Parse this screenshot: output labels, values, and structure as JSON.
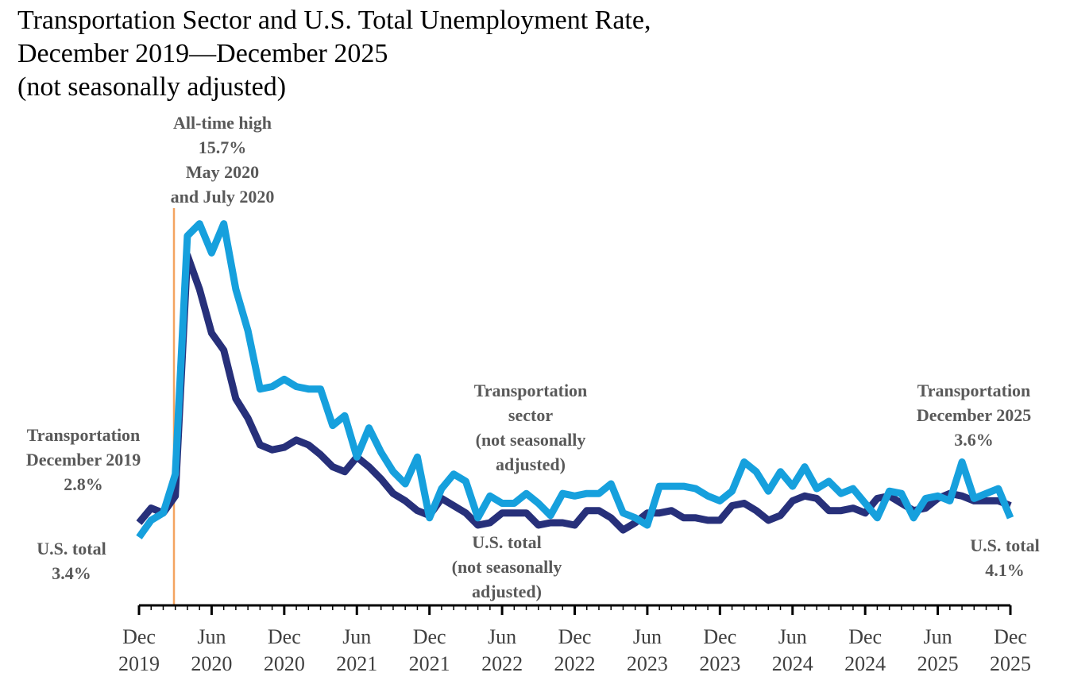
{
  "chart_data": {
    "type": "line",
    "title": [
      "Transportation Sector and U.S. Total Unemployment Rate,",
      "December 2019—December 2025"
    ],
    "subtitle": "(not seasonally adjusted)",
    "categories": [
      "Dec 2019",
      null,
      null,
      null,
      null,
      null,
      "Jun 2020",
      null,
      null,
      null,
      null,
      null,
      "Dec 2020",
      null,
      null,
      null,
      null,
      null,
      "Jun 2021",
      null,
      null,
      null,
      null,
      null,
      "Dec 2021",
      null,
      null,
      null,
      null,
      null,
      "Jun 2022",
      null,
      null,
      null,
      null,
      null,
      "Dec 2022",
      null,
      null,
      null,
      null,
      null,
      "Jun 2023",
      null,
      null,
      null,
      null,
      null,
      "Dec 2023",
      null,
      null,
      null,
      null,
      null,
      "Jun 2024",
      null,
      null,
      null,
      null,
      null,
      "Dec 2024",
      null,
      null,
      null,
      null,
      null,
      "Jun 2025",
      null,
      null,
      null,
      null,
      null,
      "Dec 2025"
    ],
    "series": [
      {
        "color": "#27307a",
        "values": [
          3.4,
          4.0,
          3.8,
          4.5,
          14.4,
          13.0,
          11.2,
          10.5,
          8.5,
          7.7,
          6.6,
          6.4,
          6.5,
          6.8,
          6.6,
          6.2,
          5.7,
          5.5,
          6.1,
          5.7,
          5.2,
          4.6,
          4.3,
          3.9,
          3.7,
          4.4,
          4.1,
          3.8,
          3.3,
          3.4,
          3.8,
          3.8,
          3.8,
          3.3,
          3.4,
          3.4,
          3.3,
          3.9,
          3.9,
          3.6,
          3.1,
          3.4,
          3.8,
          3.8,
          3.9,
          3.6,
          3.6,
          3.5,
          3.5,
          4.1,
          4.2,
          3.9,
          3.5,
          3.7,
          4.3,
          4.5,
          4.4,
          3.9,
          3.9,
          4.0,
          3.8,
          4.4,
          4.5,
          4.2,
          3.9,
          4.0,
          4.4,
          4.6,
          4.5,
          4.3,
          4.3,
          4.3,
          4.1
        ]
      },
      {
        "color": "#16a0dd",
        "values": [
          2.8,
          3.5,
          3.8,
          5.4,
          15.2,
          15.7,
          14.5,
          15.7,
          13.0,
          11.3,
          8.9,
          9.0,
          9.3,
          9.0,
          8.9,
          8.9,
          7.4,
          7.8,
          6.1,
          7.3,
          6.3,
          5.5,
          5.0,
          6.1,
          3.6,
          4.8,
          5.4,
          5.1,
          3.6,
          4.5,
          4.2,
          4.2,
          4.6,
          4.2,
          3.7,
          4.6,
          4.5,
          4.6,
          4.6,
          5.0,
          3.8,
          3.6,
          3.3,
          4.9,
          4.9,
          4.9,
          4.8,
          4.5,
          4.3,
          4.7,
          5.9,
          5.5,
          4.7,
          5.5,
          4.9,
          5.7,
          4.8,
          5.1,
          4.6,
          4.8,
          4.2,
          3.6,
          4.7,
          4.6,
          3.6,
          4.4,
          4.5,
          4.3,
          5.9,
          4.4,
          4.6,
          4.8,
          3.6
        ]
      }
    ],
    "annotations": [
      {
        "lines": [
          "Transportation",
          "December 2019",
          "2.8%"
        ]
      },
      {
        "lines": [
          "U.S. total",
          "3.4%"
        ]
      },
      {
        "lines": [
          "All-time high",
          "15.7%",
          "May 2020",
          "and July 2020"
        ]
      },
      {
        "lines": [
          "Transportation",
          "sector",
          "(not seasonally",
          "adjusted)"
        ]
      },
      {
        "lines": [
          "U.S. total",
          "(not seasonally",
          "adjusted)"
        ]
      },
      {
        "lines": [
          "Transportation",
          "December 2025",
          "3.6%"
        ]
      },
      {
        "lines": [
          "U.S. total",
          "4.1%"
        ]
      }
    ]
  }
}
